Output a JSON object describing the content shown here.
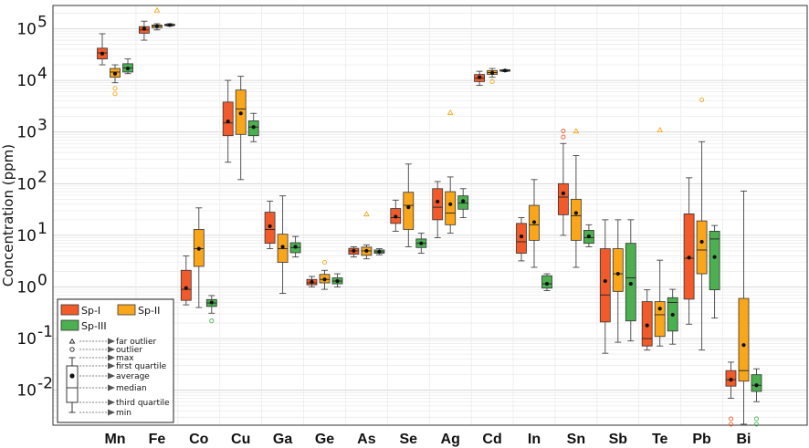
{
  "chart_data": {
    "type": "box",
    "ylabel": "Concentration (ppm)",
    "yscale": "log",
    "ylim": [
      0.002,
      250000
    ],
    "grid": true,
    "legend_position": "bottom-left",
    "categories": [
      "Mn",
      "Fe",
      "Co",
      "Cu",
      "Ga",
      "Ge",
      "As",
      "Se",
      "Ag",
      "Cd",
      "In",
      "Sn",
      "Sb",
      "Te",
      "Pb",
      "Bi"
    ],
    "y_ticks": [
      {
        "exp": -2,
        "label": "10",
        "sup": "-2"
      },
      {
        "exp": -1,
        "label": "10",
        "sup": "-1"
      },
      {
        "exp": 0,
        "label": "10",
        "sup": "0"
      },
      {
        "exp": 1,
        "label": "10",
        "sup": "1"
      },
      {
        "exp": 2,
        "label": "10",
        "sup": "2"
      },
      {
        "exp": 3,
        "label": "10",
        "sup": "3"
      },
      {
        "exp": 4,
        "label": "10",
        "sup": "4"
      },
      {
        "exp": 5,
        "label": "10",
        "sup": "5"
      }
    ],
    "series": [
      {
        "name": "Sp-I",
        "color": "#f15a2b",
        "boxes": [
          {
            "cat": "Mn",
            "min": 20000,
            "q1": 26000,
            "median": 34000,
            "q3": 42000,
            "max": 80000,
            "mean": 33000,
            "outliers": [],
            "far": []
          },
          {
            "cat": "Fe",
            "min": 60000,
            "q1": 82000,
            "median": 95000,
            "q3": 110000,
            "max": 140000,
            "mean": 100000,
            "outliers": [],
            "far": []
          },
          {
            "cat": "Co",
            "min": 0.45,
            "q1": 0.55,
            "median": 0.9,
            "q3": 2.1,
            "max": 4.0,
            "mean": 0.95,
            "outliers": [],
            "far": []
          },
          {
            "cat": "Cu",
            "min": 260,
            "q1": 850,
            "median": 1500,
            "q3": 3800,
            "max": 10000,
            "mean": 1600,
            "outliers": [],
            "far": []
          },
          {
            "cat": "Ga",
            "min": 5.5,
            "q1": 7,
            "median": 13,
            "q3": 28,
            "max": 46,
            "mean": 15,
            "outliers": [],
            "far": []
          },
          {
            "cat": "Ge",
            "min": 1.0,
            "q1": 1.1,
            "median": 1.2,
            "q3": 1.4,
            "max": 1.6,
            "mean": 1.25,
            "outliers": [],
            "far": []
          },
          {
            "cat": "As",
            "min": 3.8,
            "q1": 4.3,
            "median": 5.0,
            "q3": 5.6,
            "max": 6.0,
            "mean": 5.0,
            "outliers": [],
            "far": []
          },
          {
            "cat": "Se",
            "min": 12,
            "q1": 17,
            "median": 22,
            "q3": 33,
            "max": 48,
            "mean": 23,
            "outliers": [],
            "far": []
          },
          {
            "cat": "Ag",
            "min": 9,
            "q1": 20,
            "median": 35,
            "q3": 80,
            "max": 110,
            "mean": 45,
            "outliers": [],
            "far": []
          },
          {
            "cat": "Cd",
            "min": 8000,
            "q1": 9500,
            "median": 11000,
            "q3": 13000,
            "max": 15000,
            "mean": 11500,
            "outliers": [],
            "far": []
          },
          {
            "cat": "In",
            "min": 3.2,
            "q1": 4.5,
            "median": 7.5,
            "q3": 17,
            "max": 22,
            "mean": 9.5,
            "outliers": [],
            "far": []
          },
          {
            "cat": "Sn",
            "min": 10,
            "q1": 25,
            "median": 55,
            "q3": 100,
            "max": 600,
            "mean": 65,
            "outliers": [
              800,
              1050
            ],
            "far": []
          },
          {
            "cat": "Sb",
            "min": 0.052,
            "q1": 0.21,
            "median": 0.7,
            "q3": 5.5,
            "max": 20,
            "mean": 1.3,
            "outliers": [],
            "far": []
          },
          {
            "cat": "Te",
            "min": 0.06,
            "q1": 0.072,
            "median": 0.1,
            "q3": 0.52,
            "max": 0.88,
            "mean": 0.18,
            "outliers": [],
            "far": []
          },
          {
            "cat": "Pb",
            "min": 0.19,
            "q1": 0.58,
            "median": 3.6,
            "q3": 26,
            "max": 130,
            "mean": 3.7,
            "outliers": [],
            "far": []
          },
          {
            "cat": "Bi",
            "min": 0.007,
            "q1": 0.012,
            "median": 0.016,
            "q3": 0.024,
            "max": 0.035,
            "mean": 0.016,
            "outliers": [
              0.0022,
              0.0028
            ],
            "far": []
          }
        ]
      },
      {
        "name": "Sp-II",
        "color": "#f9a61a",
        "boxes": [
          {
            "cat": "Mn",
            "min": 9000,
            "q1": 11500,
            "median": 14500,
            "q3": 17000,
            "max": 20000,
            "mean": 13500,
            "outliers": [
              5500,
              7000
            ],
            "far": []
          },
          {
            "cat": "Fe",
            "min": 95000,
            "q1": 105000,
            "median": 112000,
            "q3": 118000,
            "max": 125000,
            "mean": 112000,
            "outliers": [],
            "far": [
              230000
            ]
          },
          {
            "cat": "Co",
            "min": 0.4,
            "q1": 2.5,
            "median": 5.5,
            "q3": 13,
            "max": 34,
            "mean": 5.5,
            "outliers": [],
            "far": []
          },
          {
            "cat": "Cu",
            "min": 120,
            "q1": 900,
            "median": 2800,
            "q3": 6500,
            "max": 12000,
            "mean": 2300,
            "outliers": [],
            "far": []
          },
          {
            "cat": "Ga",
            "min": 0.75,
            "q1": 3.0,
            "median": 5.5,
            "q3": 10.5,
            "max": 58,
            "mean": 6.0,
            "outliers": [],
            "far": []
          },
          {
            "cat": "Ge",
            "min": 0.9,
            "q1": 1.2,
            "median": 1.4,
            "q3": 1.75,
            "max": 2.1,
            "mean": 1.4,
            "outliers": [
              3.0
            ],
            "far": []
          },
          {
            "cat": "As",
            "min": 3.5,
            "q1": 4.1,
            "median": 5.0,
            "q3": 5.9,
            "max": 6.5,
            "mean": 5.0,
            "outliers": [],
            "far": [
              26
            ]
          },
          {
            "cat": "Se",
            "min": 6,
            "q1": 13,
            "median": 38,
            "q3": 68,
            "max": 240,
            "mean": 35,
            "outliers": [],
            "far": []
          },
          {
            "cat": "Ag",
            "min": 11,
            "q1": 16,
            "median": 27,
            "q3": 70,
            "max": 135,
            "mean": 40,
            "outliers": [],
            "far": [
              2400
            ]
          },
          {
            "cat": "Cd",
            "min": 11500,
            "q1": 13000,
            "median": 14200,
            "q3": 15500,
            "max": 17000,
            "mean": 14000,
            "outliers": [
              9500
            ],
            "far": []
          },
          {
            "cat": "In",
            "min": 2.4,
            "q1": 8,
            "median": 16,
            "q3": 38,
            "max": 120,
            "mean": 18,
            "outliers": [],
            "far": []
          },
          {
            "cat": "Sn",
            "min": 2.4,
            "q1": 8,
            "median": 24,
            "q3": 50,
            "max": 350,
            "mean": 27,
            "outliers": [],
            "far": [
              1050
            ]
          },
          {
            "cat": "Sb",
            "min": 0.085,
            "q1": 0.82,
            "median": 1.8,
            "q3": 5.5,
            "max": 20,
            "mean": 1.8,
            "outliers": [],
            "far": []
          },
          {
            "cat": "Te",
            "min": 0.072,
            "q1": 0.11,
            "median": 0.29,
            "q3": 0.52,
            "max": 3.3,
            "mean": 0.38,
            "outliers": [],
            "far": [
              1100
            ]
          },
          {
            "cat": "Pb",
            "min": 0.06,
            "q1": 1.8,
            "median": 5.2,
            "q3": 19,
            "max": 650,
            "mean": 7.5,
            "outliers": [
              4200
            ],
            "far": []
          },
          {
            "cat": "Bi",
            "min": 0.0022,
            "q1": 0.015,
            "median": 0.024,
            "q3": 0.6,
            "max": 72,
            "mean": 0.075,
            "outliers": [],
            "far": []
          }
        ]
      },
      {
        "name": "Sp-III",
        "color": "#4caf50",
        "boxes": [
          {
            "cat": "Mn",
            "min": 13500,
            "q1": 14500,
            "median": 17500,
            "q3": 21000,
            "max": 26000,
            "mean": 17000,
            "outliers": [],
            "far": []
          },
          {
            "cat": "Fe",
            "min": 112000,
            "q1": 115000,
            "median": 118000,
            "q3": 122000,
            "max": 125000,
            "mean": 118000,
            "outliers": [],
            "far": []
          },
          {
            "cat": "Co",
            "min": 0.31,
            "q1": 0.42,
            "median": 0.49,
            "q3": 0.57,
            "max": 0.68,
            "mean": 0.5,
            "outliers": [
              0.22
            ],
            "far": []
          },
          {
            "cat": "Cu",
            "min": 650,
            "q1": 850,
            "median": 1250,
            "q3": 1650,
            "max": 2300,
            "mean": 1250,
            "outliers": [],
            "far": []
          },
          {
            "cat": "Ga",
            "min": 3.8,
            "q1": 4.6,
            "median": 5.8,
            "q3": 7.2,
            "max": 9.5,
            "mean": 6.0,
            "outliers": [],
            "far": []
          },
          {
            "cat": "Ge",
            "min": 1.0,
            "q1": 1.15,
            "median": 1.3,
            "q3": 1.5,
            "max": 1.8,
            "mean": 1.3,
            "outliers": [],
            "far": []
          },
          {
            "cat": "As",
            "min": 4.2,
            "q1": 4.5,
            "median": 4.8,
            "q3": 5.2,
            "max": 5.5,
            "mean": 4.8,
            "outliers": [],
            "far": []
          },
          {
            "cat": "Se",
            "min": 4.5,
            "q1": 5.8,
            "median": 7.0,
            "q3": 8.5,
            "max": 11,
            "mean": 7.0,
            "outliers": [],
            "far": []
          },
          {
            "cat": "Ag",
            "min": 22,
            "q1": 32,
            "median": 42,
            "q3": 58,
            "max": 80,
            "mean": 46,
            "outliers": [],
            "far": []
          },
          {
            "cat": "Cd",
            "min": 14800,
            "q1": 15200,
            "median": 15500,
            "q3": 16000,
            "max": 16200,
            "mean": 15500,
            "outliers": [],
            "far": []
          },
          {
            "cat": "In",
            "min": 0.85,
            "q1": 0.95,
            "median": 1.15,
            "q3": 1.65,
            "max": 1.8,
            "mean": 1.15,
            "outliers": [],
            "far": []
          },
          {
            "cat": "Sn",
            "min": 6,
            "q1": 7,
            "median": 9,
            "q3": 12.5,
            "max": 16,
            "mean": 9.5,
            "outliers": [],
            "far": []
          },
          {
            "cat": "Sb",
            "min": 0.09,
            "q1": 0.22,
            "median": 1.5,
            "q3": 7,
            "max": 20,
            "mean": 1.15,
            "outliers": [],
            "far": []
          },
          {
            "cat": "Te",
            "min": 0.078,
            "q1": 0.14,
            "median": 0.5,
            "q3": 0.62,
            "max": 0.9,
            "mean": 0.29,
            "outliers": [],
            "far": []
          },
          {
            "cat": "Pb",
            "min": 0.25,
            "q1": 0.88,
            "median": 8.5,
            "q3": 12,
            "max": 15.5,
            "mean": 3.8,
            "outliers": [],
            "far": []
          },
          {
            "cat": "Bi",
            "min": 0.006,
            "q1": 0.0095,
            "median": 0.0125,
            "q3": 0.02,
            "max": 0.026,
            "mean": 0.0125,
            "outliers": [
              0.0022,
              0.0028
            ],
            "far": []
          }
        ]
      }
    ],
    "legend_key": {
      "items": [
        "far outlier",
        "outlier",
        "max",
        "first quartile",
        "average",
        "median",
        "third quartile",
        "min"
      ]
    }
  }
}
